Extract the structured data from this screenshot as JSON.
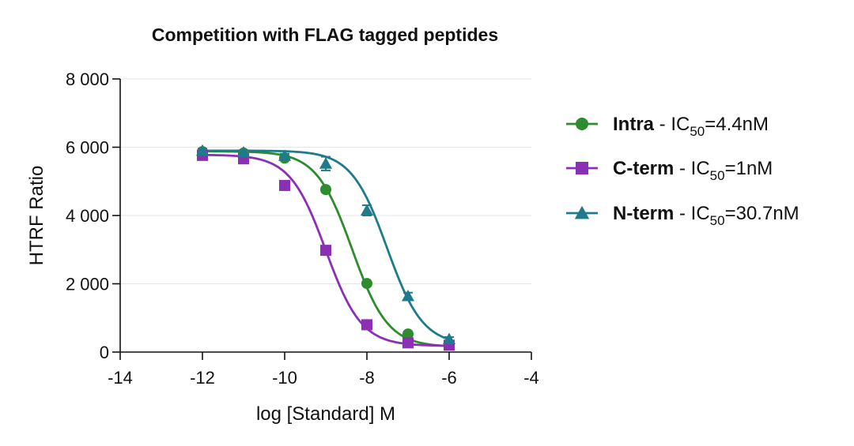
{
  "chart_data": {
    "type": "scatter",
    "title": "Competition with FLAG tagged peptides",
    "xlabel": "log [Standard] M",
    "ylabel": "HTRF Ratio",
    "xlim": [
      -14,
      -4
    ],
    "ylim": [
      0,
      8000
    ],
    "x_ticks": [
      -14,
      -12,
      -10,
      -8,
      -6,
      -4
    ],
    "x_tick_labels": [
      "-14",
      "-12",
      "-10",
      "-8",
      "-6",
      "-4"
    ],
    "y_ticks": [
      0,
      2000,
      4000,
      6000,
      8000
    ],
    "y_tick_labels": [
      "0",
      "2 000",
      "4 000",
      "6 000",
      "8 000"
    ],
    "grid": true,
    "legend_position": "right",
    "series": [
      {
        "name": "Intra",
        "ic50_label": "4.4nM",
        "color": "#2e8b2e",
        "marker": "circle",
        "logIC50": -8.36,
        "bottom": 150,
        "top": 5880,
        "hill": 1.0,
        "x": [
          -12,
          -11,
          -10,
          -9,
          -8,
          -7,
          -6
        ],
        "values": [
          5870,
          5830,
          5680,
          4760,
          2010,
          530,
          210
        ],
        "errors": [
          60,
          60,
          60,
          80,
          60,
          40,
          30
        ]
      },
      {
        "name": "C-term",
        "ic50_label": "1nM",
        "color": "#8b2fb5",
        "marker": "square",
        "logIC50": -9.0,
        "bottom": 180,
        "top": 5780,
        "hill": 1.0,
        "x": [
          -12,
          -11,
          -10,
          -9,
          -8,
          -7,
          -6
        ],
        "values": [
          5760,
          5660,
          4880,
          2980,
          800,
          270,
          200
        ],
        "errors": [
          50,
          50,
          60,
          60,
          50,
          40,
          30
        ]
      },
      {
        "name": "N-term",
        "ic50_label": "30.7nM",
        "color": "#1f7a8c",
        "marker": "triangle",
        "logIC50": -7.51,
        "bottom": 200,
        "top": 5900,
        "hill": 1.0,
        "x": [
          -12,
          -11,
          -10,
          -9,
          -8,
          -7,
          -6
        ],
        "values": [
          5900,
          5850,
          5750,
          5520,
          4150,
          1640,
          380
        ],
        "errors": [
          60,
          60,
          60,
          200,
          150,
          100,
          60
        ]
      }
    ]
  },
  "legend": {
    "ic_prefix": "IC",
    "ic_subscript": "50",
    "separator": " - "
  }
}
